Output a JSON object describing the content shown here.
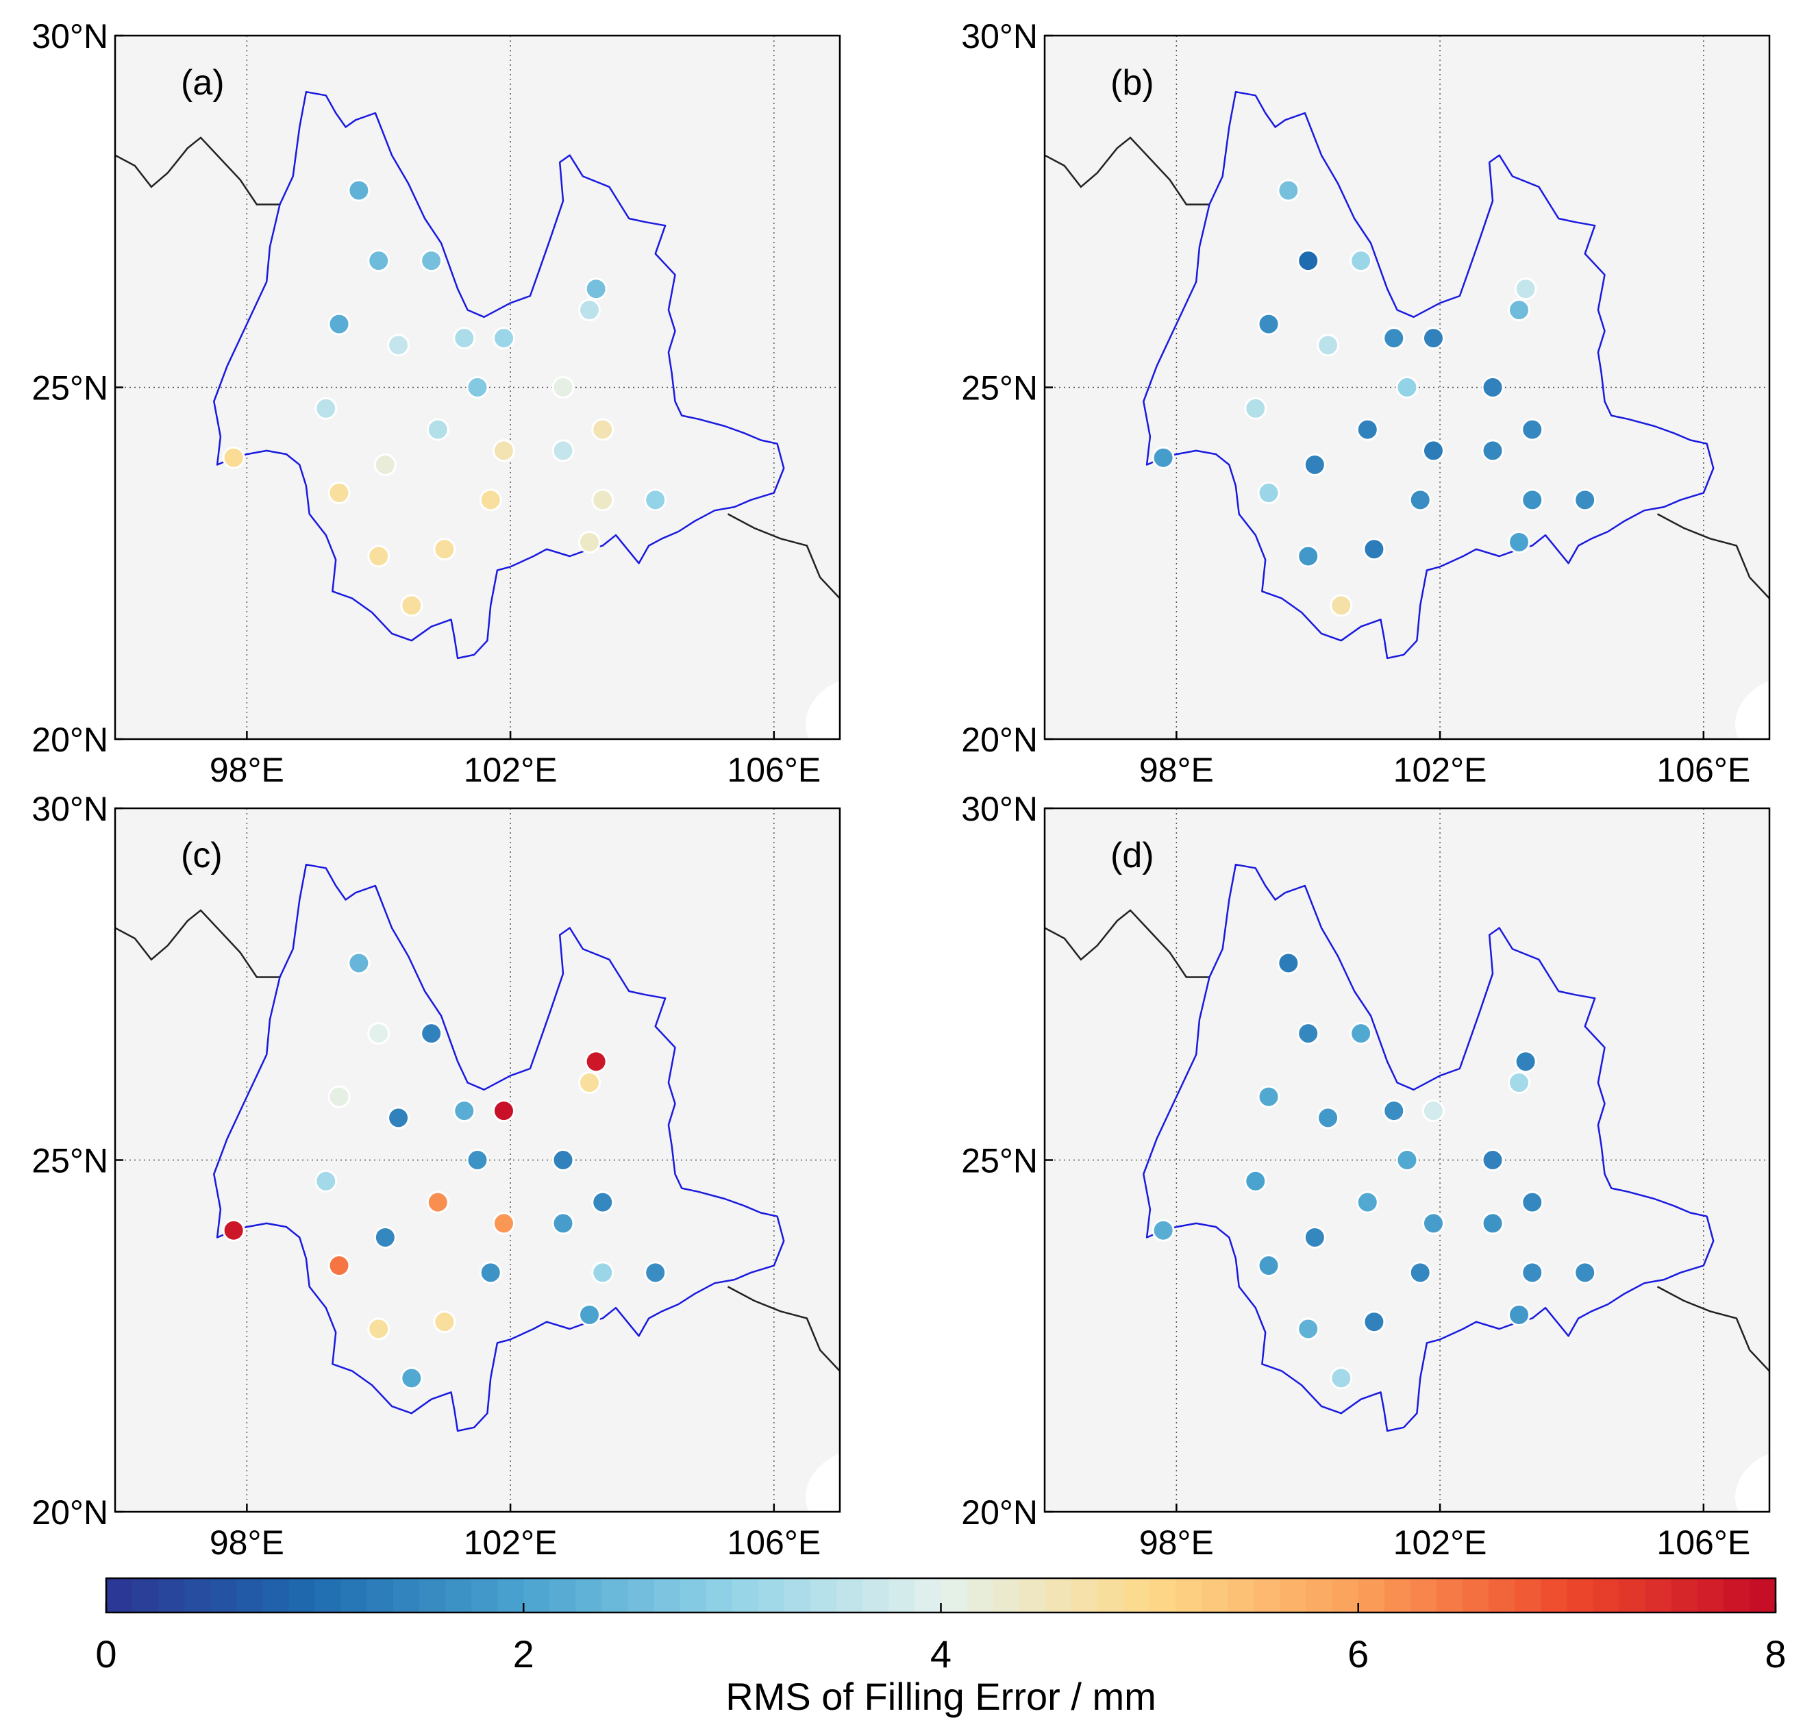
{
  "chart_data": {
    "type": "scatter",
    "description_units": "station longitude (°E), latitude (°N), value = RMS of filling error (mm)",
    "xlim": [
      96,
      107
    ],
    "ylim": [
      20,
      30
    ],
    "xticks": [
      98,
      102,
      106
    ],
    "yticks": [
      20,
      25,
      30
    ],
    "xtick_labels": [
      "98°E",
      "102°E",
      "106°E"
    ],
    "ytick_labels": [
      "20°N",
      "25°N",
      "30°N"
    ],
    "grid": true,
    "colorbar": {
      "range": [
        0,
        8
      ],
      "ticks": [
        0,
        2,
        4,
        6,
        8
      ],
      "tick_labels": [
        "0",
        "2",
        "4",
        "6",
        "8"
      ],
      "label": "RMS of Filling Error / mm",
      "position": "bottom",
      "colormap": [
        "#2c3593",
        "#1f6bb0",
        "#4aa3cf",
        "#93d3e7",
        "#e3f1ed",
        "#fdda8a",
        "#fba05a",
        "#ee4a2c",
        "#c40a27"
      ]
    },
    "colors": {
      "province_boundary": "#1a1adf",
      "country_border": "#222222",
      "map_background": "#f4f4f4",
      "ocean": "#ffffff"
    },
    "panels": [
      {
        "label": "(a)",
        "stations": [
          {
            "lon": 99.7,
            "lat": 27.8,
            "value": 2.3
          },
          {
            "lon": 100.0,
            "lat": 26.8,
            "value": 2.5
          },
          {
            "lon": 100.8,
            "lat": 26.8,
            "value": 2.6
          },
          {
            "lon": 103.3,
            "lat": 26.4,
            "value": 2.6
          },
          {
            "lon": 99.4,
            "lat": 25.9,
            "value": 2.2
          },
          {
            "lon": 103.2,
            "lat": 26.1,
            "value": 3.5
          },
          {
            "lon": 100.3,
            "lat": 25.6,
            "value": 3.6
          },
          {
            "lon": 101.3,
            "lat": 25.7,
            "value": 3.3
          },
          {
            "lon": 101.9,
            "lat": 25.7,
            "value": 3.1
          },
          {
            "lon": 101.5,
            "lat": 25.0,
            "value": 2.8
          },
          {
            "lon": 102.8,
            "lat": 25.0,
            "value": 4.1
          },
          {
            "lon": 99.2,
            "lat": 24.7,
            "value": 3.5
          },
          {
            "lon": 100.9,
            "lat": 24.4,
            "value": 3.4
          },
          {
            "lon": 103.4,
            "lat": 24.4,
            "value": 4.6
          },
          {
            "lon": 97.8,
            "lat": 24.0,
            "value": 4.9
          },
          {
            "lon": 101.9,
            "lat": 24.1,
            "value": 4.6
          },
          {
            "lon": 102.8,
            "lat": 24.1,
            "value": 3.6
          },
          {
            "lon": 100.1,
            "lat": 23.9,
            "value": 4.2
          },
          {
            "lon": 99.4,
            "lat": 23.5,
            "value": 4.8
          },
          {
            "lon": 101.7,
            "lat": 23.4,
            "value": 4.8
          },
          {
            "lon": 103.4,
            "lat": 23.4,
            "value": 4.4
          },
          {
            "lon": 104.2,
            "lat": 23.4,
            "value": 3.0
          },
          {
            "lon": 103.2,
            "lat": 22.8,
            "value": 4.4
          },
          {
            "lon": 100.0,
            "lat": 22.6,
            "value": 4.8
          },
          {
            "lon": 101.0,
            "lat": 22.7,
            "value": 4.8
          },
          {
            "lon": 100.5,
            "lat": 21.9,
            "value": 4.8
          }
        ]
      },
      {
        "label": "(b)",
        "stations": [
          {
            "lon": 99.7,
            "lat": 27.8,
            "value": 2.6
          },
          {
            "lon": 100.0,
            "lat": 26.8,
            "value": 1.0
          },
          {
            "lon": 100.8,
            "lat": 26.8,
            "value": 3.1
          },
          {
            "lon": 103.3,
            "lat": 26.4,
            "value": 3.6
          },
          {
            "lon": 99.4,
            "lat": 25.9,
            "value": 1.6
          },
          {
            "lon": 103.2,
            "lat": 26.1,
            "value": 2.5
          },
          {
            "lon": 100.3,
            "lat": 25.6,
            "value": 3.5
          },
          {
            "lon": 101.3,
            "lat": 25.7,
            "value": 1.6
          },
          {
            "lon": 101.9,
            "lat": 25.7,
            "value": 1.4
          },
          {
            "lon": 101.5,
            "lat": 25.0,
            "value": 3.0
          },
          {
            "lon": 102.8,
            "lat": 25.0,
            "value": 1.4
          },
          {
            "lon": 99.2,
            "lat": 24.7,
            "value": 3.4
          },
          {
            "lon": 100.9,
            "lat": 24.4,
            "value": 1.4
          },
          {
            "lon": 103.4,
            "lat": 24.4,
            "value": 1.5
          },
          {
            "lon": 97.8,
            "lat": 24.0,
            "value": 1.9
          },
          {
            "lon": 101.9,
            "lat": 24.1,
            "value": 1.3
          },
          {
            "lon": 102.8,
            "lat": 24.1,
            "value": 1.5
          },
          {
            "lon": 100.1,
            "lat": 23.9,
            "value": 1.4
          },
          {
            "lon": 99.4,
            "lat": 23.5,
            "value": 3.1
          },
          {
            "lon": 101.7,
            "lat": 23.4,
            "value": 1.6
          },
          {
            "lon": 103.4,
            "lat": 23.4,
            "value": 1.7
          },
          {
            "lon": 104.2,
            "lat": 23.4,
            "value": 1.6
          },
          {
            "lon": 103.2,
            "lat": 22.8,
            "value": 2.0
          },
          {
            "lon": 100.0,
            "lat": 22.6,
            "value": 1.8
          },
          {
            "lon": 101.0,
            "lat": 22.7,
            "value": 1.3
          },
          {
            "lon": 100.5,
            "lat": 21.9,
            "value": 4.7
          }
        ]
      },
      {
        "label": "(c)",
        "stations": [
          {
            "lon": 99.7,
            "lat": 27.8,
            "value": 2.4
          },
          {
            "lon": 100.0,
            "lat": 26.8,
            "value": 4.0
          },
          {
            "lon": 100.8,
            "lat": 26.8,
            "value": 1.4
          },
          {
            "lon": 103.3,
            "lat": 26.4,
            "value": 7.8
          },
          {
            "lon": 99.4,
            "lat": 25.9,
            "value": 4.1
          },
          {
            "lon": 103.2,
            "lat": 26.1,
            "value": 4.8
          },
          {
            "lon": 100.3,
            "lat": 25.6,
            "value": 1.4
          },
          {
            "lon": 101.3,
            "lat": 25.7,
            "value": 2.2
          },
          {
            "lon": 101.9,
            "lat": 25.7,
            "value": 7.9
          },
          {
            "lon": 101.5,
            "lat": 25.0,
            "value": 1.7
          },
          {
            "lon": 102.8,
            "lat": 25.0,
            "value": 1.4
          },
          {
            "lon": 99.2,
            "lat": 24.7,
            "value": 3.2
          },
          {
            "lon": 100.9,
            "lat": 24.4,
            "value": 6.2
          },
          {
            "lon": 103.4,
            "lat": 24.4,
            "value": 1.5
          },
          {
            "lon": 97.8,
            "lat": 24.0,
            "value": 7.8
          },
          {
            "lon": 101.9,
            "lat": 24.1,
            "value": 6.1
          },
          {
            "lon": 102.8,
            "lat": 24.1,
            "value": 1.9
          },
          {
            "lon": 100.1,
            "lat": 23.9,
            "value": 1.5
          },
          {
            "lon": 99.4,
            "lat": 23.5,
            "value": 6.5
          },
          {
            "lon": 101.7,
            "lat": 23.4,
            "value": 1.7
          },
          {
            "lon": 103.4,
            "lat": 23.4,
            "value": 3.1
          },
          {
            "lon": 104.2,
            "lat": 23.4,
            "value": 1.6
          },
          {
            "lon": 103.2,
            "lat": 22.8,
            "value": 2.0
          },
          {
            "lon": 100.0,
            "lat": 22.6,
            "value": 4.8
          },
          {
            "lon": 101.0,
            "lat": 22.7,
            "value": 4.8
          },
          {
            "lon": 100.5,
            "lat": 21.9,
            "value": 2.1
          }
        ]
      },
      {
        "label": "(d)",
        "stations": [
          {
            "lon": 99.7,
            "lat": 27.8,
            "value": 1.3
          },
          {
            "lon": 100.0,
            "lat": 26.8,
            "value": 1.5
          },
          {
            "lon": 100.8,
            "lat": 26.8,
            "value": 2.1
          },
          {
            "lon": 103.3,
            "lat": 26.4,
            "value": 1.4
          },
          {
            "lon": 99.4,
            "lat": 25.9,
            "value": 2.1
          },
          {
            "lon": 103.2,
            "lat": 26.1,
            "value": 3.2
          },
          {
            "lon": 100.3,
            "lat": 25.6,
            "value": 1.8
          },
          {
            "lon": 101.3,
            "lat": 25.7,
            "value": 1.6
          },
          {
            "lon": 101.9,
            "lat": 25.7,
            "value": 3.8
          },
          {
            "lon": 101.5,
            "lat": 25.0,
            "value": 2.1
          },
          {
            "lon": 102.8,
            "lat": 25.0,
            "value": 1.4
          },
          {
            "lon": 99.2,
            "lat": 24.7,
            "value": 2.0
          },
          {
            "lon": 100.9,
            "lat": 24.4,
            "value": 2.1
          },
          {
            "lon": 103.4,
            "lat": 24.4,
            "value": 1.5
          },
          {
            "lon": 97.8,
            "lat": 24.0,
            "value": 2.2
          },
          {
            "lon": 101.9,
            "lat": 24.1,
            "value": 1.9
          },
          {
            "lon": 102.8,
            "lat": 24.1,
            "value": 1.7
          },
          {
            "lon": 100.1,
            "lat": 23.9,
            "value": 1.5
          },
          {
            "lon": 99.4,
            "lat": 23.5,
            "value": 1.9
          },
          {
            "lon": 101.7,
            "lat": 23.4,
            "value": 1.5
          },
          {
            "lon": 103.4,
            "lat": 23.4,
            "value": 1.6
          },
          {
            "lon": 104.2,
            "lat": 23.4,
            "value": 1.6
          },
          {
            "lon": 103.2,
            "lat": 22.8,
            "value": 1.8
          },
          {
            "lon": 100.0,
            "lat": 22.6,
            "value": 2.3
          },
          {
            "lon": 101.0,
            "lat": 22.7,
            "value": 1.4
          },
          {
            "lon": 100.5,
            "lat": 21.9,
            "value": 3.2
          }
        ]
      }
    ],
    "province_outline": [
      [
        97.55,
        23.9
      ],
      [
        97.8,
        24.0
      ],
      [
        98.0,
        24.05
      ],
      [
        98.3,
        24.1
      ],
      [
        98.6,
        24.05
      ],
      [
        98.8,
        23.9
      ],
      [
        98.9,
        23.6
      ],
      [
        98.95,
        23.2
      ],
      [
        99.2,
        22.9
      ],
      [
        99.35,
        22.55
      ],
      [
        99.3,
        22.1
      ],
      [
        99.6,
        22.0
      ],
      [
        99.9,
        21.8
      ],
      [
        100.2,
        21.5
      ],
      [
        100.5,
        21.4
      ],
      [
        100.8,
        21.6
      ],
      [
        101.1,
        21.7
      ],
      [
        101.15,
        21.45
      ],
      [
        101.2,
        21.15
      ],
      [
        101.45,
        21.2
      ],
      [
        101.65,
        21.4
      ],
      [
        101.7,
        21.9
      ],
      [
        101.8,
        22.4
      ],
      [
        102.0,
        22.45
      ],
      [
        102.35,
        22.6
      ],
      [
        102.55,
        22.7
      ],
      [
        102.9,
        22.6
      ],
      [
        103.2,
        22.7
      ],
      [
        103.4,
        22.75
      ],
      [
        103.6,
        22.9
      ],
      [
        103.95,
        22.5
      ],
      [
        104.1,
        22.75
      ],
      [
        104.3,
        22.85
      ],
      [
        104.55,
        22.95
      ],
      [
        104.8,
        23.1
      ],
      [
        105.1,
        23.25
      ],
      [
        105.4,
        23.3
      ],
      [
        105.65,
        23.4
      ],
      [
        106.0,
        23.5
      ],
      [
        106.15,
        23.85
      ],
      [
        106.05,
        24.2
      ],
      [
        105.8,
        24.25
      ],
      [
        105.55,
        24.35
      ],
      [
        105.25,
        24.45
      ],
      [
        104.85,
        24.55
      ],
      [
        104.6,
        24.6
      ],
      [
        104.5,
        24.8
      ],
      [
        104.45,
        25.2
      ],
      [
        104.4,
        25.5
      ],
      [
        104.5,
        25.8
      ],
      [
        104.4,
        26.1
      ],
      [
        104.5,
        26.6
      ],
      [
        104.2,
        26.9
      ],
      [
        104.35,
        27.3
      ],
      [
        104.05,
        27.35
      ],
      [
        103.8,
        27.4
      ],
      [
        103.7,
        27.55
      ],
      [
        103.5,
        27.85
      ],
      [
        103.1,
        28.0
      ],
      [
        102.9,
        28.3
      ],
      [
        102.75,
        28.2
      ],
      [
        102.8,
        27.65
      ],
      [
        102.6,
        27.1
      ],
      [
        102.45,
        26.7
      ],
      [
        102.3,
        26.3
      ],
      [
        102.0,
        26.2
      ],
      [
        101.6,
        26.0
      ],
      [
        101.35,
        26.1
      ],
      [
        101.2,
        26.4
      ],
      [
        100.95,
        27.05
      ],
      [
        100.7,
        27.4
      ],
      [
        100.45,
        27.9
      ],
      [
        100.2,
        28.3
      ],
      [
        99.95,
        28.9
      ],
      [
        99.65,
        28.8
      ],
      [
        99.5,
        28.7
      ],
      [
        99.35,
        28.9
      ],
      [
        99.2,
        29.15
      ],
      [
        98.9,
        29.2
      ],
      [
        98.8,
        28.7
      ],
      [
        98.7,
        28.0
      ],
      [
        98.5,
        27.6
      ],
      [
        98.35,
        27.0
      ],
      [
        98.3,
        26.5
      ],
      [
        98.1,
        26.1
      ],
      [
        97.9,
        25.7
      ],
      [
        97.7,
        25.3
      ],
      [
        97.5,
        24.8
      ],
      [
        97.6,
        24.3
      ],
      [
        97.55,
        23.9
      ]
    ],
    "country_border_west": [
      [
        96.0,
        28.3
      ],
      [
        96.3,
        28.15
      ],
      [
        96.55,
        27.85
      ],
      [
        96.8,
        28.05
      ],
      [
        97.1,
        28.4
      ],
      [
        97.3,
        28.55
      ],
      [
        97.55,
        28.3
      ],
      [
        97.9,
        27.95
      ],
      [
        98.15,
        27.6
      ],
      [
        98.5,
        27.6
      ]
    ],
    "country_border_east": [
      [
        105.3,
        23.2
      ],
      [
        105.7,
        23.0
      ],
      [
        106.1,
        22.85
      ],
      [
        106.5,
        22.75
      ],
      [
        106.7,
        22.3
      ],
      [
        107.0,
        22.0
      ]
    ]
  }
}
